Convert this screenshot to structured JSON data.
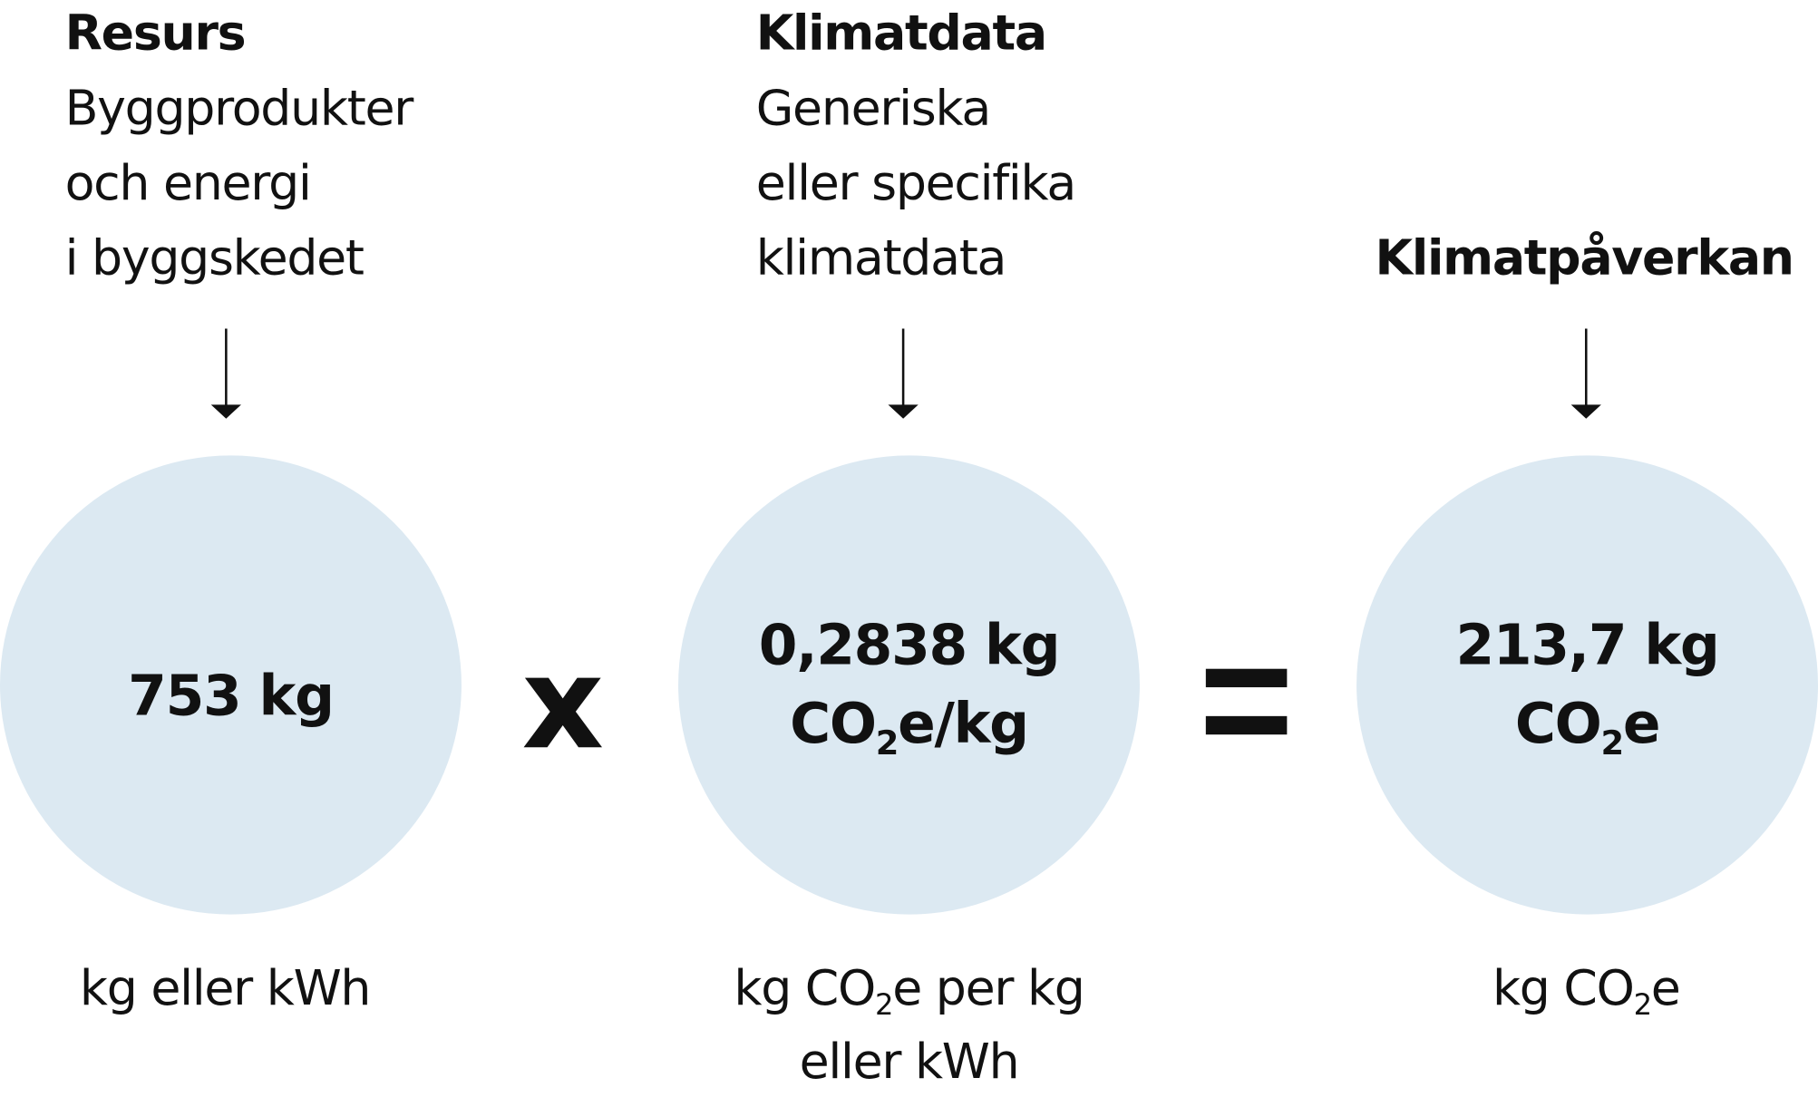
{
  "resource": {
    "title": "Resurs",
    "lines": [
      "Byggprodukter",
      "och energi",
      "i byggskedet"
    ],
    "value": "753 kg",
    "unit": "kg eller kWh"
  },
  "operator_multiply": "x",
  "climate_data": {
    "title": "Klimatdata",
    "lines": [
      "Generiska",
      "eller specifika",
      "klimatdata"
    ],
    "value_line1": "0,2838 kg",
    "value_line2_pre": "CO",
    "value_line2_sub": "2",
    "value_line2_post": "e/kg",
    "unit_line1_pre": "kg CO",
    "unit_line1_sub": "2",
    "unit_line1_post": "e per kg",
    "unit_line2": "eller kWh"
  },
  "operator_equals": "=",
  "climate_impact": {
    "title": "Klimatpåverkan",
    "value_line1": "213,7 kg",
    "value_line2_pre": "CO",
    "value_line2_sub": "2",
    "value_line2_post": "e",
    "unit_pre": "kg CO",
    "unit_sub": "2",
    "unit_post": "e"
  },
  "colors": {
    "circle": "#dce9f2",
    "text": "#111111"
  }
}
